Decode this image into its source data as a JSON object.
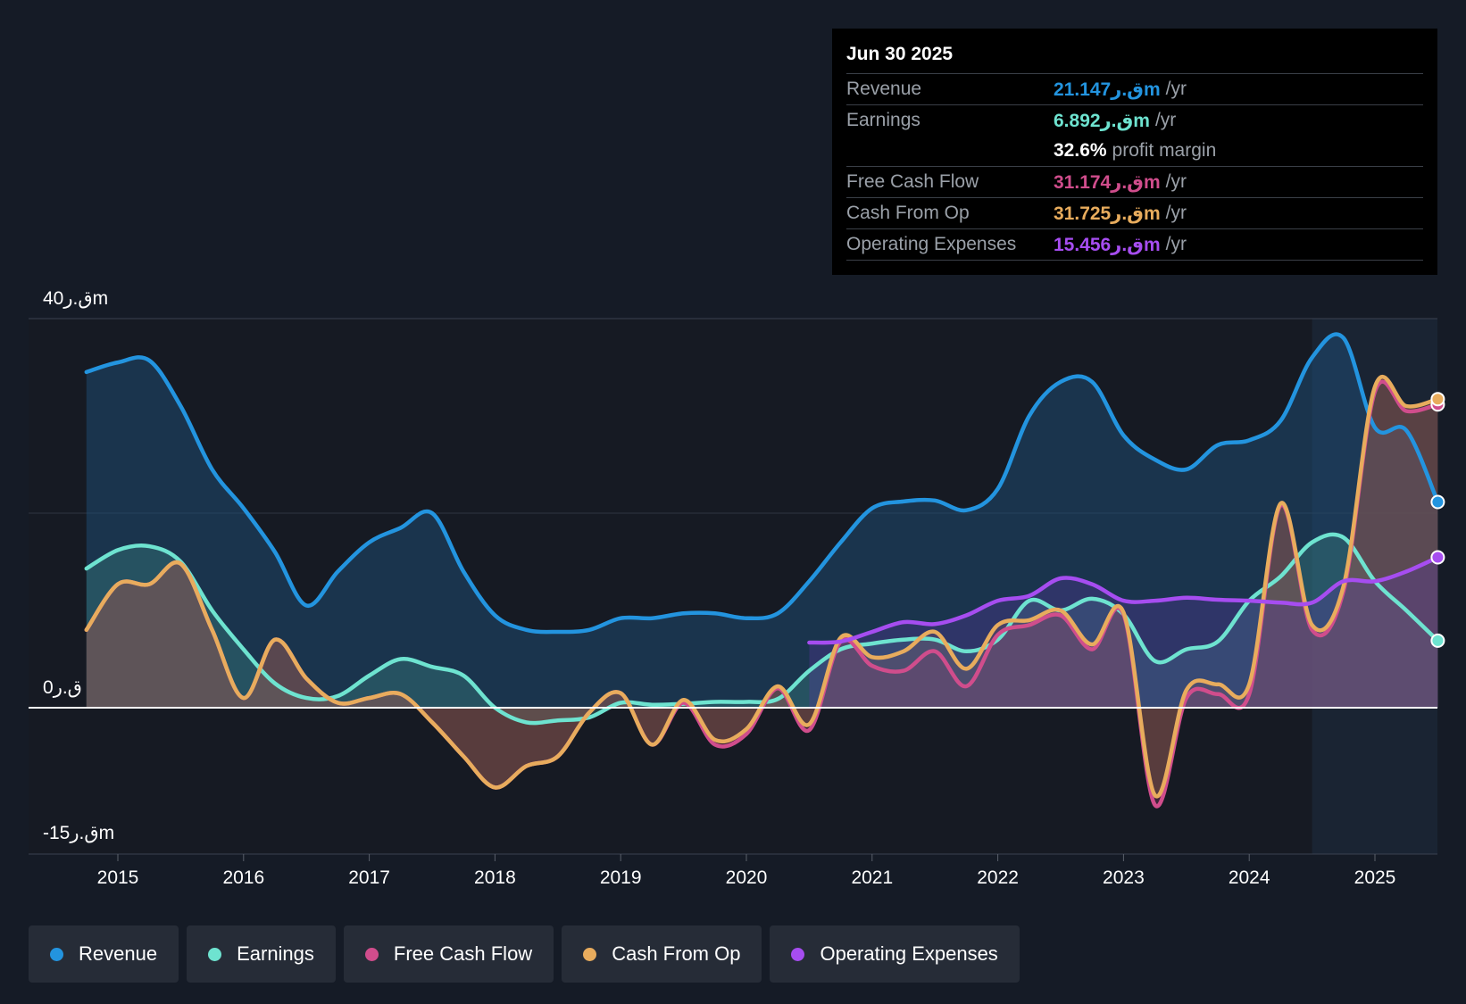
{
  "tooltip": {
    "date": "Jun 30 2025",
    "rows": [
      {
        "label": "Revenue",
        "value": "21.147ق.رm",
        "unit": "/yr",
        "color": "#2394df"
      },
      {
        "label": "Earnings",
        "value": "6.892ق.رm",
        "unit": "/yr",
        "color": "#6ee3d0"
      },
      {
        "label": "",
        "value": "32.6%",
        "unit": "profit margin",
        "color": "#ffffff"
      },
      {
        "label": "Free Cash Flow",
        "value": "31.174ق.رm",
        "unit": "/yr",
        "color": "#d04d8c"
      },
      {
        "label": "Cash From Op",
        "value": "31.725ق.رm",
        "unit": "/yr",
        "color": "#e8ac5d"
      },
      {
        "label": "Operating Expenses",
        "value": "15.456ق.رm",
        "unit": "/yr",
        "color": "#a64df0"
      }
    ]
  },
  "legend": [
    {
      "label": "Revenue",
      "color": "#2394df"
    },
    {
      "label": "Earnings",
      "color": "#6ee3d0"
    },
    {
      "label": "Free Cash Flow",
      "color": "#d04d8c"
    },
    {
      "label": "Cash From Op",
      "color": "#e8ac5d"
    },
    {
      "label": "Operating Expenses",
      "color": "#a64df0"
    }
  ],
  "chart_data": {
    "type": "area",
    "title": "",
    "xlabel": "",
    "ylabel": "",
    "y_tick_labels": {
      "top": "40ق.رm",
      "zero": "0ق.ر",
      "bottom": "-15ق.رm"
    },
    "ylim": [
      -15,
      40
    ],
    "xlim": [
      2014.75,
      2025.5
    ],
    "x_ticks": [
      "2015",
      "2016",
      "2017",
      "2018",
      "2019",
      "2020",
      "2021",
      "2022",
      "2023",
      "2024",
      "2025"
    ],
    "forecast_region_start": 2024.5,
    "series": [
      {
        "name": "Revenue",
        "color": "#2394df",
        "points": [
          [
            2014.75,
            34.5
          ],
          [
            2015.0,
            35.5
          ],
          [
            2015.25,
            35.7
          ],
          [
            2015.5,
            31
          ],
          [
            2015.75,
            24.5
          ],
          [
            2016.0,
            20.5
          ],
          [
            2016.25,
            16
          ],
          [
            2016.5,
            10.5
          ],
          [
            2016.75,
            14
          ],
          [
            2017.0,
            17
          ],
          [
            2017.25,
            18.5
          ],
          [
            2017.5,
            20
          ],
          [
            2017.75,
            14
          ],
          [
            2018.0,
            9.5
          ],
          [
            2018.25,
            8
          ],
          [
            2018.5,
            7.8
          ],
          [
            2018.75,
            8
          ],
          [
            2019.0,
            9.2
          ],
          [
            2019.25,
            9.2
          ],
          [
            2019.5,
            9.7
          ],
          [
            2019.75,
            9.7
          ],
          [
            2020.0,
            9.2
          ],
          [
            2020.25,
            9.7
          ],
          [
            2020.5,
            13
          ],
          [
            2020.75,
            17
          ],
          [
            2021.0,
            20.5
          ],
          [
            2021.25,
            21.2
          ],
          [
            2021.5,
            21.3
          ],
          [
            2021.75,
            20.3
          ],
          [
            2022.0,
            22.5
          ],
          [
            2022.25,
            30
          ],
          [
            2022.5,
            33.5
          ],
          [
            2022.75,
            33.5
          ],
          [
            2023.0,
            28
          ],
          [
            2023.25,
            25.5
          ],
          [
            2023.5,
            24.5
          ],
          [
            2023.75,
            27
          ],
          [
            2024.0,
            27.5
          ],
          [
            2024.25,
            29.5
          ],
          [
            2024.5,
            36
          ],
          [
            2024.75,
            38
          ],
          [
            2025.0,
            28.8
          ],
          [
            2025.25,
            28.5
          ],
          [
            2025.5,
            21.147
          ]
        ]
      },
      {
        "name": "Earnings",
        "color": "#6ee3d0",
        "points": [
          [
            2014.75,
            14.3
          ],
          [
            2015.0,
            16.2
          ],
          [
            2015.25,
            16.6
          ],
          [
            2015.5,
            15
          ],
          [
            2015.75,
            10
          ],
          [
            2016.0,
            6
          ],
          [
            2016.25,
            2.5
          ],
          [
            2016.5,
            1
          ],
          [
            2016.75,
            1.2
          ],
          [
            2017.0,
            3.3
          ],
          [
            2017.25,
            5
          ],
          [
            2017.5,
            4.2
          ],
          [
            2017.75,
            3.3
          ],
          [
            2018.0,
            0
          ],
          [
            2018.25,
            -1.5
          ],
          [
            2018.5,
            -1.3
          ],
          [
            2018.75,
            -1
          ],
          [
            2019.0,
            0.5
          ],
          [
            2019.25,
            0.3
          ],
          [
            2019.5,
            0.4
          ],
          [
            2019.75,
            0.6
          ],
          [
            2020.0,
            0.6
          ],
          [
            2020.25,
            0.9
          ],
          [
            2020.5,
            3.8
          ],
          [
            2020.75,
            6
          ],
          [
            2021.0,
            6.6
          ],
          [
            2021.25,
            7
          ],
          [
            2021.5,
            7
          ],
          [
            2021.75,
            5.8
          ],
          [
            2022.0,
            7
          ],
          [
            2022.25,
            11
          ],
          [
            2022.5,
            10
          ],
          [
            2022.75,
            11.2
          ],
          [
            2023.0,
            9.6
          ],
          [
            2023.25,
            4.8
          ],
          [
            2023.5,
            6
          ],
          [
            2023.75,
            6.8
          ],
          [
            2024.0,
            11
          ],
          [
            2024.25,
            13.5
          ],
          [
            2024.5,
            17
          ],
          [
            2024.75,
            17.5
          ],
          [
            2025.0,
            13
          ],
          [
            2025.25,
            10
          ],
          [
            2025.5,
            6.892
          ]
        ]
      },
      {
        "name": "Free Cash Flow",
        "color": "#d04d8c",
        "points": [
          [
            2014.75,
            8
          ],
          [
            2015.0,
            12.7
          ],
          [
            2015.25,
            12.7
          ],
          [
            2015.5,
            14.8
          ],
          [
            2015.75,
            8
          ],
          [
            2016.0,
            1
          ],
          [
            2016.25,
            7
          ],
          [
            2016.5,
            3
          ],
          [
            2016.75,
            0.5
          ],
          [
            2017.0,
            1
          ],
          [
            2017.25,
            1.4
          ],
          [
            2017.5,
            -1.5
          ],
          [
            2017.75,
            -5
          ],
          [
            2018.0,
            -8.2
          ],
          [
            2018.25,
            -6
          ],
          [
            2018.5,
            -5
          ],
          [
            2018.75,
            -0.5
          ],
          [
            2019.0,
            1.5
          ],
          [
            2019.25,
            -3.8
          ],
          [
            2019.5,
            0.5
          ],
          [
            2019.75,
            -3.8
          ],
          [
            2020.0,
            -2.7
          ],
          [
            2020.25,
            2
          ],
          [
            2020.5,
            -2.3
          ],
          [
            2020.75,
            6.8
          ],
          [
            2021.0,
            4.3
          ],
          [
            2021.25,
            3.8
          ],
          [
            2021.5,
            5.8
          ],
          [
            2021.75,
            2.2
          ],
          [
            2022.0,
            7.5
          ],
          [
            2022.25,
            8.5
          ],
          [
            2022.5,
            9.5
          ],
          [
            2022.75,
            6
          ],
          [
            2023.0,
            9.6
          ],
          [
            2023.25,
            -10
          ],
          [
            2023.5,
            1
          ],
          [
            2023.75,
            1.4
          ],
          [
            2024.0,
            1.4
          ],
          [
            2024.25,
            20.8
          ],
          [
            2024.5,
            8
          ],
          [
            2024.75,
            12
          ],
          [
            2025.0,
            32.5
          ],
          [
            2025.25,
            30.5
          ],
          [
            2025.5,
            31.174
          ]
        ]
      },
      {
        "name": "Cash From Op",
        "color": "#e8ac5d",
        "points": [
          [
            2014.75,
            8
          ],
          [
            2015.0,
            12.7
          ],
          [
            2015.25,
            12.7
          ],
          [
            2015.5,
            14.8
          ],
          [
            2015.75,
            8
          ],
          [
            2016.0,
            1
          ],
          [
            2016.25,
            7
          ],
          [
            2016.5,
            3
          ],
          [
            2016.75,
            0.5
          ],
          [
            2017.0,
            1
          ],
          [
            2017.25,
            1.4
          ],
          [
            2017.5,
            -1.5
          ],
          [
            2017.75,
            -5
          ],
          [
            2018.0,
            -8.2
          ],
          [
            2018.25,
            -6
          ],
          [
            2018.5,
            -5
          ],
          [
            2018.75,
            -0.5
          ],
          [
            2019.0,
            1.5
          ],
          [
            2019.25,
            -3.8
          ],
          [
            2019.5,
            0.8
          ],
          [
            2019.75,
            -3.3
          ],
          [
            2020.0,
            -2.2
          ],
          [
            2020.25,
            2.2
          ],
          [
            2020.5,
            -1.7
          ],
          [
            2020.75,
            7.2
          ],
          [
            2021.0,
            5.2
          ],
          [
            2021.25,
            5.8
          ],
          [
            2021.5,
            7.8
          ],
          [
            2021.75,
            4
          ],
          [
            2022.0,
            8.5
          ],
          [
            2022.25,
            9
          ],
          [
            2022.5,
            10
          ],
          [
            2022.75,
            6.5
          ],
          [
            2023.0,
            9.8
          ],
          [
            2023.25,
            -9
          ],
          [
            2023.5,
            1.8
          ],
          [
            2023.75,
            2.4
          ],
          [
            2024.0,
            2.4
          ],
          [
            2024.25,
            21
          ],
          [
            2024.5,
            8.5
          ],
          [
            2024.75,
            12.5
          ],
          [
            2025.0,
            33
          ],
          [
            2025.25,
            31
          ],
          [
            2025.5,
            31.725
          ]
        ]
      },
      {
        "name": "Operating Expenses",
        "color": "#a64df0",
        "points": [
          [
            2020.5,
            6.7
          ],
          [
            2020.75,
            6.8
          ],
          [
            2021.0,
            7.8
          ],
          [
            2021.25,
            8.8
          ],
          [
            2021.5,
            8.6
          ],
          [
            2021.75,
            9.5
          ],
          [
            2022.0,
            11
          ],
          [
            2022.25,
            11.5
          ],
          [
            2022.5,
            13.3
          ],
          [
            2022.75,
            12.7
          ],
          [
            2023.0,
            11
          ],
          [
            2023.25,
            11
          ],
          [
            2023.5,
            11.3
          ],
          [
            2023.75,
            11.1
          ],
          [
            2024.0,
            11
          ],
          [
            2024.25,
            10.8
          ],
          [
            2024.5,
            10.8
          ],
          [
            2024.75,
            13
          ],
          [
            2025.0,
            13
          ],
          [
            2025.25,
            14
          ],
          [
            2025.5,
            15.456
          ]
        ]
      }
    ]
  }
}
